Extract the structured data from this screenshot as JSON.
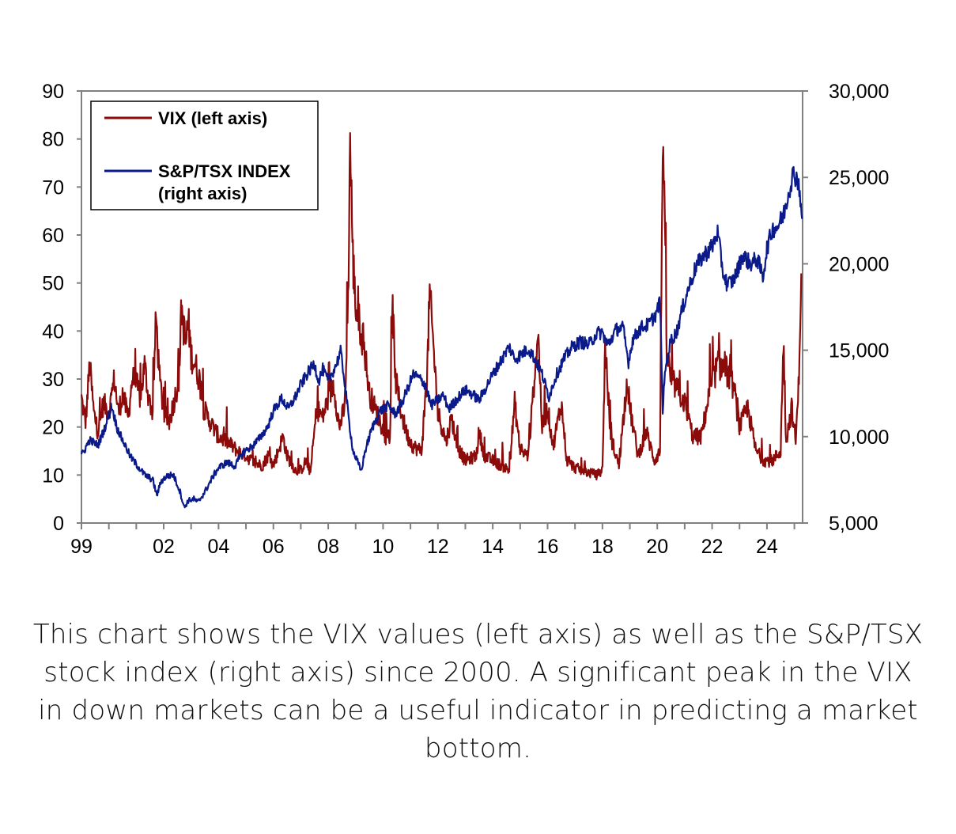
{
  "chart_data": {
    "type": "line",
    "title": "",
    "x_axis": {
      "tick_labels": [
        "99",
        "02",
        "04",
        "06",
        "08",
        "10",
        "12",
        "14",
        "16",
        "18",
        "20",
        "22",
        "24"
      ],
      "tick_years": [
        1999,
        2002,
        2004,
        2006,
        2008,
        2010,
        2012,
        2014,
        2016,
        2018,
        2020,
        2022,
        2024
      ],
      "range": [
        1999,
        2025.3
      ]
    },
    "y_left": {
      "label": "VIX",
      "range": [
        0,
        90
      ],
      "tick_labels": [
        "0",
        "10",
        "20",
        "30",
        "40",
        "50",
        "60",
        "70",
        "80",
        "90"
      ],
      "ticks": [
        0,
        10,
        20,
        30,
        40,
        50,
        60,
        70,
        80,
        90
      ]
    },
    "y_right": {
      "label": "S&P/TSX INDEX",
      "range": [
        5000,
        30000
      ],
      "tick_labels": [
        "5,000",
        "10,000",
        "15,000",
        "20,000",
        "25,000",
        "30,000"
      ],
      "ticks": [
        5000,
        10000,
        15000,
        20000,
        25000,
        30000
      ]
    },
    "legend": {
      "position": "top-left",
      "entries": [
        {
          "label": "VIX (left axis)",
          "color": "#8B0A0A"
        },
        {
          "label": "S&P/TSX INDEX",
          "label2": "(right axis)",
          "color": "#0A1A8B"
        }
      ]
    },
    "series": [
      {
        "name": "VIX (left axis)",
        "axis": "left",
        "color": "#8B0A0A",
        "points": [
          [
            1999.0,
            26
          ],
          [
            1999.15,
            21
          ],
          [
            1999.3,
            33
          ],
          [
            1999.45,
            23
          ],
          [
            1999.6,
            19
          ],
          [
            1999.8,
            25
          ],
          [
            2000.0,
            23
          ],
          [
            2000.2,
            30
          ],
          [
            2000.35,
            23
          ],
          [
            2000.5,
            27
          ],
          [
            2000.7,
            22
          ],
          [
            2000.85,
            30
          ],
          [
            2001.0,
            29
          ],
          [
            2001.15,
            26
          ],
          [
            2001.3,
            33
          ],
          [
            2001.45,
            26
          ],
          [
            2001.6,
            23
          ],
          [
            2001.72,
            43
          ],
          [
            2001.85,
            30
          ],
          [
            2002.0,
            23
          ],
          [
            2002.2,
            21
          ],
          [
            2002.4,
            26
          ],
          [
            2002.55,
            30
          ],
          [
            2002.65,
            45
          ],
          [
            2002.8,
            37
          ],
          [
            2002.9,
            42
          ],
          [
            2003.0,
            35
          ],
          [
            2003.15,
            33
          ],
          [
            2003.3,
            30
          ],
          [
            2003.45,
            24
          ],
          [
            2003.6,
            22
          ],
          [
            2003.8,
            20
          ],
          [
            2004.0,
            18
          ],
          [
            2004.3,
            17
          ],
          [
            2004.5,
            16
          ],
          [
            2004.7,
            15
          ],
          [
            2005.0,
            14
          ],
          [
            2005.3,
            12.5
          ],
          [
            2005.6,
            12
          ],
          [
            2005.8,
            14
          ],
          [
            2006.0,
            12
          ],
          [
            2006.35,
            18
          ],
          [
            2006.5,
            14
          ],
          [
            2006.8,
            11
          ],
          [
            2007.0,
            11
          ],
          [
            2007.2,
            13
          ],
          [
            2007.35,
            10.5
          ],
          [
            2007.58,
            24
          ],
          [
            2007.8,
            22
          ],
          [
            2008.0,
            26
          ],
          [
            2008.2,
            29
          ],
          [
            2008.4,
            20
          ],
          [
            2008.6,
            24
          ],
          [
            2008.72,
            45
          ],
          [
            2008.8,
            80
          ],
          [
            2008.9,
            55
          ],
          [
            2009.0,
            45
          ],
          [
            2009.2,
            40
          ],
          [
            2009.35,
            35
          ],
          [
            2009.5,
            27
          ],
          [
            2009.7,
            24
          ],
          [
            2009.9,
            21
          ],
          [
            2010.1,
            18
          ],
          [
            2010.25,
            18
          ],
          [
            2010.35,
            45
          ],
          [
            2010.45,
            30
          ],
          [
            2010.7,
            22
          ],
          [
            2010.9,
            18
          ],
          [
            2011.1,
            16
          ],
          [
            2011.4,
            15
          ],
          [
            2011.6,
            30
          ],
          [
            2011.7,
            48
          ],
          [
            2011.8,
            40
          ],
          [
            2012.0,
            23
          ],
          [
            2012.3,
            17
          ],
          [
            2012.5,
            22
          ],
          [
            2012.7,
            16
          ],
          [
            2013.0,
            13
          ],
          [
            2013.4,
            14
          ],
          [
            2013.5,
            19
          ],
          [
            2013.7,
            14
          ],
          [
            2014.0,
            13
          ],
          [
            2014.3,
            12
          ],
          [
            2014.6,
            11
          ],
          [
            2014.8,
            25
          ],
          [
            2015.0,
            15
          ],
          [
            2015.3,
            14
          ],
          [
            2015.65,
            40
          ],
          [
            2015.8,
            20
          ],
          [
            2016.0,
            24
          ],
          [
            2016.2,
            16
          ],
          [
            2016.5,
            25
          ],
          [
            2016.7,
            13
          ],
          [
            2017.0,
            11.5
          ],
          [
            2017.5,
            10.5
          ],
          [
            2017.8,
            10
          ],
          [
            2018.0,
            11
          ],
          [
            2018.1,
            37
          ],
          [
            2018.3,
            18
          ],
          [
            2018.6,
            12
          ],
          [
            2018.9,
            30
          ],
          [
            2019.0,
            24
          ],
          [
            2019.3,
            14
          ],
          [
            2019.6,
            19
          ],
          [
            2019.9,
            13
          ],
          [
            2020.1,
            15
          ],
          [
            2020.2,
            83
          ],
          [
            2020.35,
            35
          ],
          [
            2020.5,
            30
          ],
          [
            2020.8,
            27
          ],
          [
            2021.0,
            25
          ],
          [
            2021.3,
            18
          ],
          [
            2021.6,
            18
          ],
          [
            2021.9,
            27
          ],
          [
            2022.2,
            33
          ],
          [
            2022.5,
            32
          ],
          [
            2022.8,
            28
          ],
          [
            2023.0,
            20
          ],
          [
            2023.3,
            24
          ],
          [
            2023.6,
            15
          ],
          [
            2023.9,
            13
          ],
          [
            2024.2,
            13
          ],
          [
            2024.5,
            15
          ],
          [
            2024.6,
            38
          ],
          [
            2024.7,
            17
          ],
          [
            2024.9,
            24
          ],
          [
            2025.05,
            17
          ],
          [
            2025.15,
            28
          ],
          [
            2025.25,
            52
          ]
        ]
      },
      {
        "name": "S&P/TSX INDEX",
        "axis": "right",
        "color": "#0A1A8B",
        "points": [
          [
            1999.0,
            8900
          ],
          [
            1999.3,
            9800
          ],
          [
            1999.6,
            9500
          ],
          [
            1999.9,
            10700
          ],
          [
            2000.1,
            11800
          ],
          [
            2000.3,
            10500
          ],
          [
            2000.5,
            9800
          ],
          [
            2000.8,
            8800
          ],
          [
            2001.0,
            8400
          ],
          [
            2001.3,
            7800
          ],
          [
            2001.6,
            7500
          ],
          [
            2001.75,
            6600
          ],
          [
            2001.9,
            7400
          ],
          [
            2002.1,
            7700
          ],
          [
            2002.35,
            7800
          ],
          [
            2002.6,
            6800
          ],
          [
            2002.75,
            5900
          ],
          [
            2002.9,
            6300
          ],
          [
            2003.1,
            6400
          ],
          [
            2003.25,
            6200
          ],
          [
            2003.5,
            6800
          ],
          [
            2003.8,
            7700
          ],
          [
            2004.0,
            8200
          ],
          [
            2004.3,
            8500
          ],
          [
            2004.6,
            8300
          ],
          [
            2004.9,
            9100
          ],
          [
            2005.2,
            9400
          ],
          [
            2005.5,
            9900
          ],
          [
            2005.8,
            10600
          ],
          [
            2006.0,
            11500
          ],
          [
            2006.3,
            12200
          ],
          [
            2006.55,
            11600
          ],
          [
            2006.8,
            12300
          ],
          [
            2007.0,
            13000
          ],
          [
            2007.3,
            13800
          ],
          [
            2007.5,
            14200
          ],
          [
            2007.65,
            13200
          ],
          [
            2007.8,
            13900
          ],
          [
            2008.0,
            13200
          ],
          [
            2008.3,
            14200
          ],
          [
            2008.45,
            14900
          ],
          [
            2008.6,
            13200
          ],
          [
            2008.75,
            11000
          ],
          [
            2008.9,
            9200
          ],
          [
            2009.05,
            8600
          ],
          [
            2009.2,
            8000
          ],
          [
            2009.35,
            9200
          ],
          [
            2009.6,
            10500
          ],
          [
            2009.9,
            11500
          ],
          [
            2010.2,
            11800
          ],
          [
            2010.45,
            11300
          ],
          [
            2010.7,
            12000
          ],
          [
            2010.9,
            12800
          ],
          [
            2011.1,
            13600
          ],
          [
            2011.3,
            13400
          ],
          [
            2011.55,
            13000
          ],
          [
            2011.75,
            11800
          ],
          [
            2011.9,
            12000
          ],
          [
            2012.2,
            12400
          ],
          [
            2012.4,
            11600
          ],
          [
            2012.7,
            12200
          ],
          [
            2013.0,
            12700
          ],
          [
            2013.3,
            12400
          ],
          [
            2013.5,
            12100
          ],
          [
            2013.8,
            13000
          ],
          [
            2014.0,
            13600
          ],
          [
            2014.3,
            14400
          ],
          [
            2014.6,
            15200
          ],
          [
            2014.8,
            14500
          ],
          [
            2015.0,
            14700
          ],
          [
            2015.3,
            15100
          ],
          [
            2015.6,
            14300
          ],
          [
            2015.8,
            13600
          ],
          [
            2016.05,
            12300
          ],
          [
            2016.3,
            13500
          ],
          [
            2016.6,
            14500
          ],
          [
            2016.9,
            15200
          ],
          [
            2017.2,
            15500
          ],
          [
            2017.5,
            15300
          ],
          [
            2017.8,
            16000
          ],
          [
            2018.0,
            16000
          ],
          [
            2018.2,
            15300
          ],
          [
            2018.5,
            16200
          ],
          [
            2018.75,
            16300
          ],
          [
            2018.95,
            14300
          ],
          [
            2019.1,
            15600
          ],
          [
            2019.4,
            16300
          ],
          [
            2019.7,
            16500
          ],
          [
            2019.95,
            17100
          ],
          [
            2020.1,
            17800
          ],
          [
            2020.2,
            11600
          ],
          [
            2020.3,
            14000
          ],
          [
            2020.5,
            15600
          ],
          [
            2020.7,
            16000
          ],
          [
            2020.9,
            17300
          ],
          [
            2021.1,
            18400
          ],
          [
            2021.4,
            19800
          ],
          [
            2021.7,
            20500
          ],
          [
            2022.0,
            21000
          ],
          [
            2022.2,
            21800
          ],
          [
            2022.4,
            19500
          ],
          [
            2022.55,
            18800
          ],
          [
            2022.75,
            19000
          ],
          [
            2022.9,
            19500
          ],
          [
            2023.1,
            20500
          ],
          [
            2023.4,
            20000
          ],
          [
            2023.65,
            20300
          ],
          [
            2023.85,
            19200
          ],
          [
            2024.0,
            20900
          ],
          [
            2024.2,
            22000
          ],
          [
            2024.4,
            22200
          ],
          [
            2024.6,
            22800
          ],
          [
            2024.8,
            24200
          ],
          [
            2024.95,
            25200
          ],
          [
            2025.1,
            25000
          ],
          [
            2025.2,
            24200
          ],
          [
            2025.28,
            22600
          ]
        ]
      }
    ]
  },
  "caption": "This chart shows the VIX values (left axis) as well as the S&P/TSX stock index (right axis) since 2000. A significant peak in the VIX in down markets can be a useful indicator in predicting a market bottom."
}
